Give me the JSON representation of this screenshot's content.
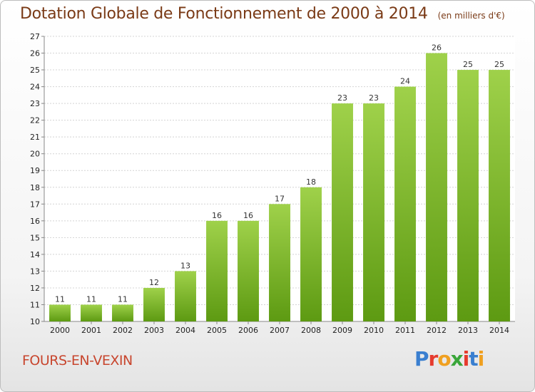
{
  "chart_data": {
    "type": "bar",
    "title": "Dotation Globale de Fonctionnement de 2000 à 2014",
    "unit_note": "(en milliers d'€)",
    "categories": [
      "2000",
      "2001",
      "2002",
      "2003",
      "2004",
      "2005",
      "2006",
      "2007",
      "2008",
      "2009",
      "2010",
      "2011",
      "2012",
      "2013",
      "2014"
    ],
    "values": [
      11,
      11,
      11,
      12,
      13,
      16,
      16,
      17,
      18,
      23,
      23,
      24,
      26,
      25,
      25
    ],
    "ylim": [
      10,
      27
    ],
    "yticks": [
      10,
      11,
      12,
      13,
      14,
      15,
      16,
      17,
      18,
      19,
      20,
      21,
      22,
      23,
      24,
      25,
      26,
      27
    ],
    "grid": true,
    "bar_color_top": "#9fd14a",
    "bar_color_bottom": "#5d9a12"
  },
  "commune": "FOURS-EN-VEXIN",
  "logo": {
    "text": "Proxiti",
    "colors": [
      "#3a7fd0",
      "#e63b2e",
      "#f0a020",
      "#3aa63a",
      "#e63b2e",
      "#3a7fd0",
      "#f0a020"
    ]
  }
}
